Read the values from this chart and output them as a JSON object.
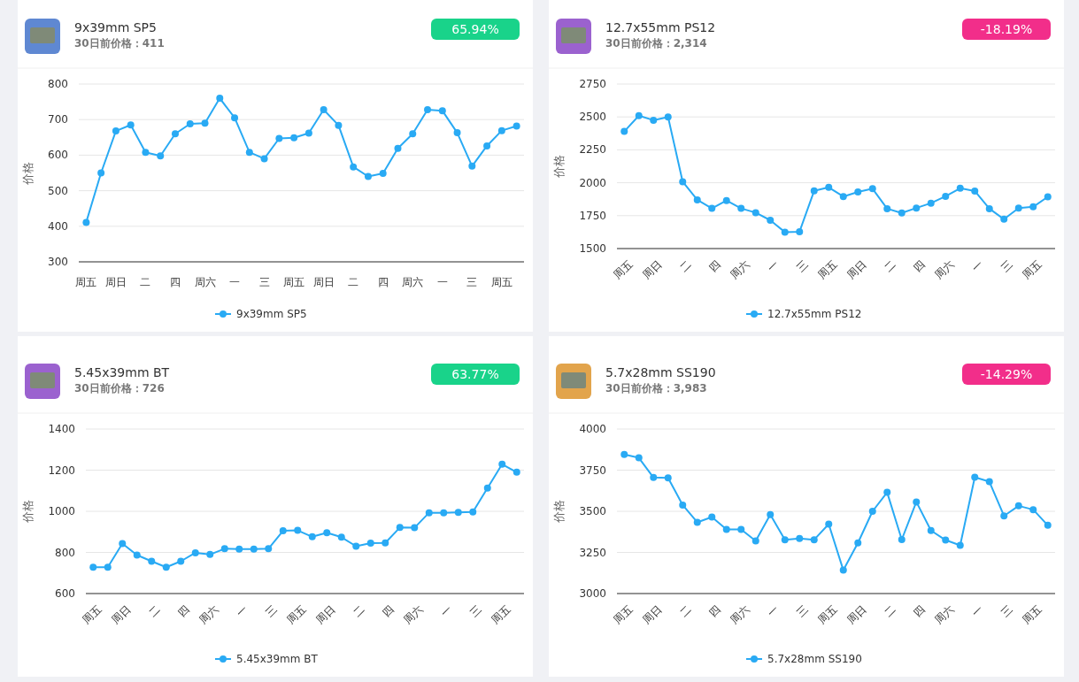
{
  "chart_data": [
    {
      "type": "line",
      "title": "9x39mm SP5",
      "subtitle": "30日前价格：411",
      "annotations": [
        "65.94%"
      ],
      "ylabel": "价格",
      "categories": [
        "周五",
        null,
        "周日",
        null,
        "二",
        null,
        "四",
        null,
        "周六",
        null,
        "一",
        null,
        "三",
        null,
        "周五",
        null,
        "周日",
        null,
        "二",
        null,
        "四",
        null,
        "周六",
        null,
        "一",
        null,
        "三",
        null,
        "周五",
        null
      ],
      "series": [
        {
          "name": "9x39mm SP5",
          "color": "#29aaf4",
          "values": [
            411,
            550,
            668,
            685,
            608,
            598,
            660,
            688,
            690,
            760,
            705,
            608,
            590,
            647,
            649,
            662,
            728,
            684,
            567,
            540,
            549,
            619,
            660,
            728,
            725,
            663,
            569,
            626,
            669,
            682
          ]
        }
      ],
      "ylim": [
        300,
        800
      ],
      "yticks": [
        300,
        400,
        500,
        600,
        700,
        800
      ],
      "grid": "y",
      "legend": "bottom",
      "marker": "circle",
      "line_style": "solid"
    },
    {
      "type": "line",
      "title": "12.7x55mm PS12",
      "subtitle": "30日前价格：2,314",
      "annotations": [
        "-18.19%"
      ],
      "ylabel": "价格",
      "categories": [
        "周五",
        null,
        "周日",
        null,
        "二",
        null,
        "四",
        null,
        "周六",
        null,
        "一",
        null,
        "三",
        null,
        "周五",
        null,
        "周日",
        null,
        "二",
        null,
        "四",
        null,
        "周六",
        null,
        "一",
        null,
        "三",
        null,
        "周五",
        null
      ],
      "series": [
        {
          "name": "12.7x55mm PS12",
          "color": "#29aaf4",
          "values": [
            2390,
            2510,
            2475,
            2500,
            2008,
            1870,
            1805,
            1865,
            1805,
            1773,
            1715,
            1625,
            1628,
            1938,
            1965,
            1895,
            1930,
            1955,
            1803,
            1770,
            1808,
            1845,
            1897,
            1958,
            1937,
            1803,
            1723,
            1808,
            1817,
            1893
          ]
        }
      ],
      "ylim": [
        1500,
        2750
      ],
      "yticks": [
        1500,
        1750,
        2000,
        2250,
        2500,
        2750
      ],
      "grid": "y",
      "legend": "bottom",
      "marker": "circle",
      "line_style": "solid"
    },
    {
      "type": "line",
      "title": "5.45x39mm BT",
      "subtitle": "30日前价格：726",
      "annotations": [
        "63.77%"
      ],
      "ylabel": "价格",
      "categories": [
        "周五",
        null,
        "周日",
        null,
        "二",
        null,
        "四",
        null,
        "周六",
        null,
        "一",
        null,
        "三",
        null,
        "周五",
        null,
        "周日",
        null,
        "二",
        null,
        "四",
        null,
        "周六",
        null,
        "一",
        null,
        "三",
        null,
        "周五",
        null
      ],
      "series": [
        {
          "name": "5.45x39mm BT",
          "color": "#29aaf4",
          "values": [
            728,
            728,
            843,
            787,
            757,
            728,
            757,
            798,
            790,
            818,
            816,
            816,
            818,
            905,
            907,
            876,
            896,
            874,
            830,
            845,
            846,
            921,
            920,
            993,
            993,
            995,
            997,
            1113,
            1229,
            1190
          ]
        }
      ],
      "ylim": [
        600,
        1400
      ],
      "yticks": [
        600,
        800,
        1000,
        1200,
        1400
      ],
      "grid": "y",
      "legend": "bottom",
      "marker": "circle",
      "line_style": "solid"
    },
    {
      "type": "line",
      "title": "5.7x28mm SS190",
      "subtitle": "30日前价格：3,983",
      "annotations": [
        "-14.29%"
      ],
      "ylabel": "价格",
      "categories": [
        "周五",
        null,
        "周日",
        null,
        "二",
        null,
        "四",
        null,
        "周六",
        null,
        "一",
        null,
        "三",
        null,
        "周五",
        null,
        "周日",
        null,
        "二",
        null,
        "四",
        null,
        "周六",
        null,
        "一",
        null,
        "三",
        null,
        "周五",
        null
      ],
      "series": [
        {
          "name": "5.7x28mm SS190",
          "color": "#29aaf4",
          "values": [
            3845,
            3825,
            3705,
            3703,
            3538,
            3433,
            3465,
            3390,
            3390,
            3320,
            3480,
            3327,
            3335,
            3327,
            3422,
            3142,
            3308,
            3500,
            3615,
            3328,
            3557,
            3383,
            3325,
            3293,
            3707,
            3680,
            3472,
            3533,
            3510,
            3415
          ]
        }
      ],
      "ylim": [
        3000,
        4000
      ],
      "yticks": [
        3000,
        3250,
        3500,
        3750,
        4000
      ],
      "grid": "y",
      "legend": "bottom",
      "marker": "circle",
      "line_style": "solid"
    }
  ]
}
